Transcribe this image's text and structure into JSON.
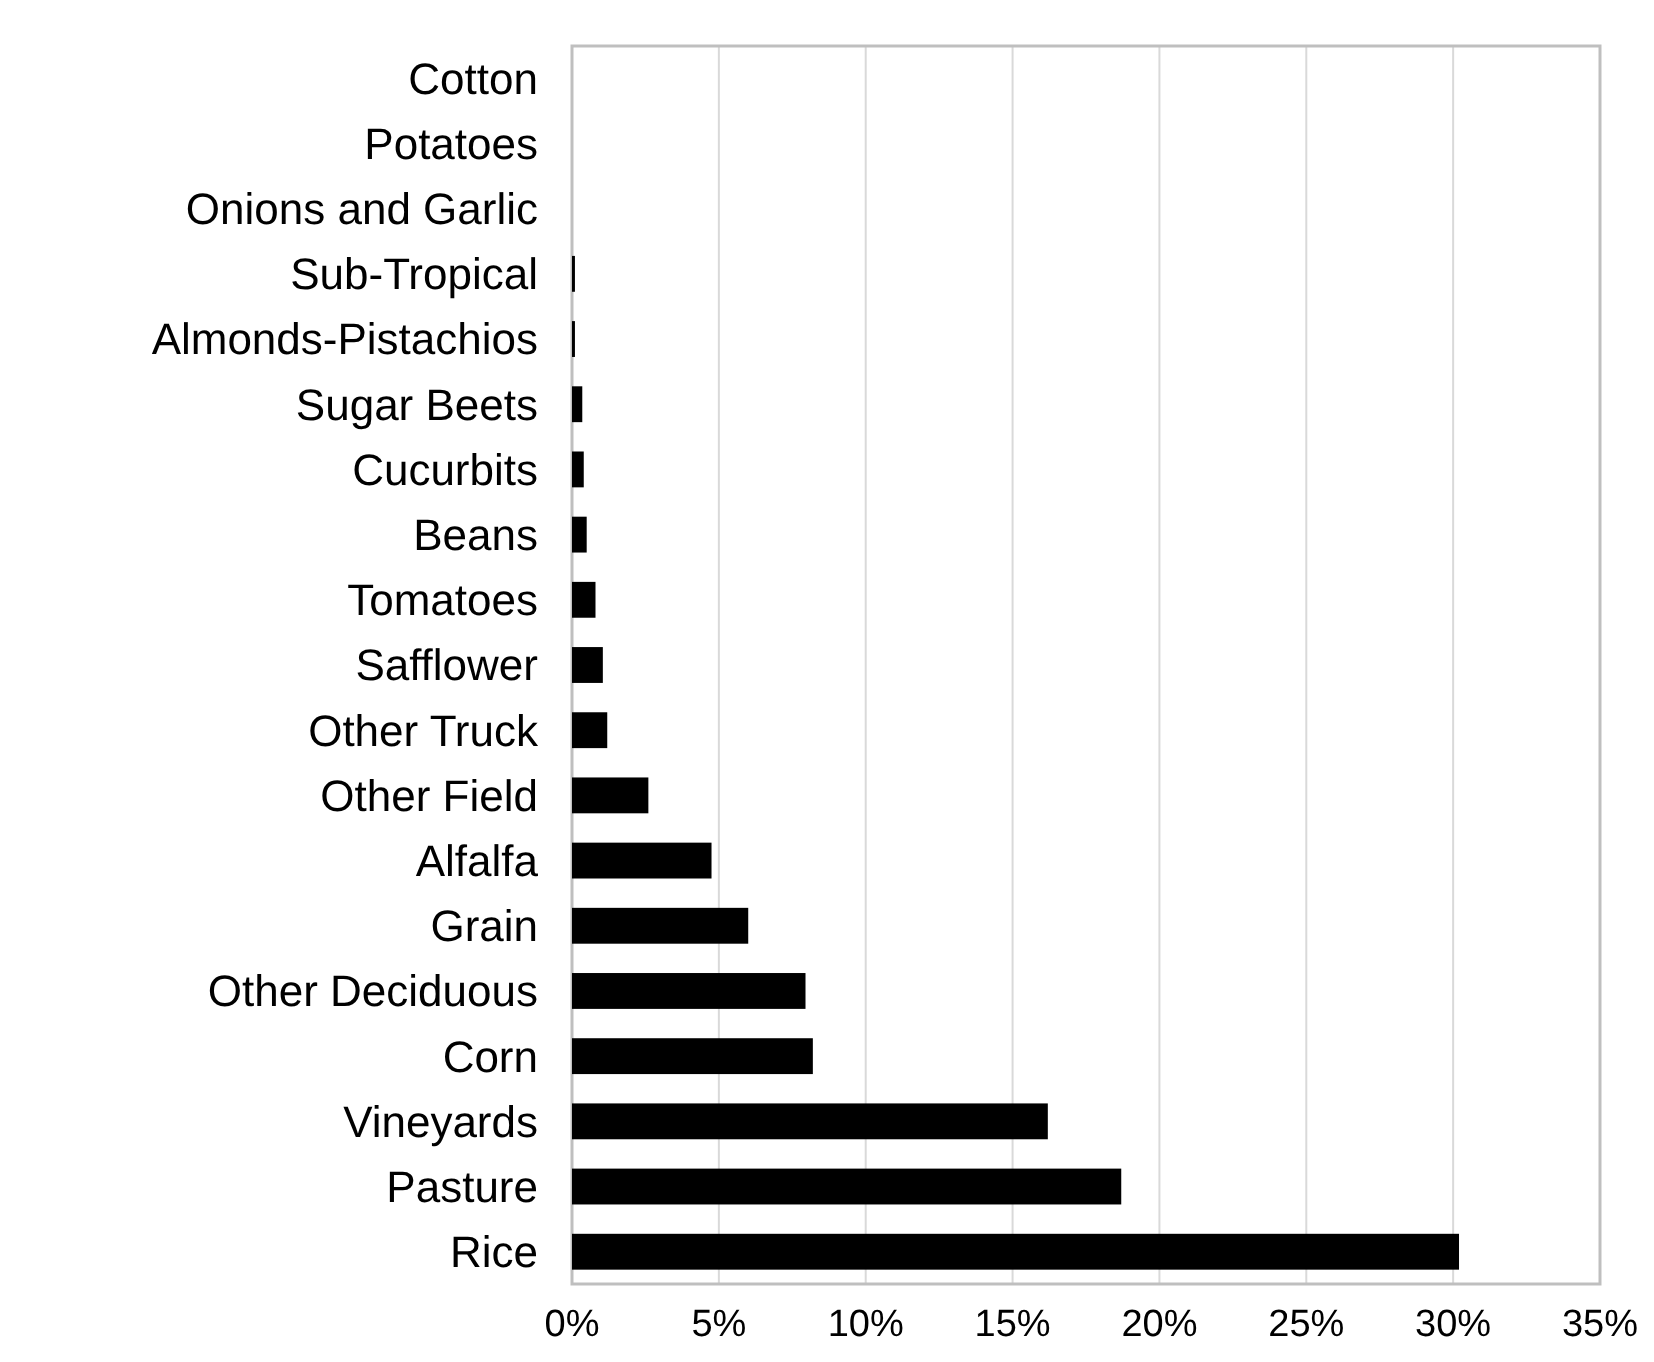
{
  "chart_data": {
    "type": "bar",
    "orientation": "horizontal",
    "categories": [
      "Cotton",
      "Potatoes",
      "Onions and Garlic",
      "Sub-Tropical",
      "Almonds-Pistachios",
      "Sugar Beets",
      "Cucurbits",
      "Beans",
      "Tomatoes",
      "Safflower",
      "Other Truck",
      "Other Field",
      "Alfalfa",
      "Grain",
      "Other Deciduous",
      "Corn",
      "Vineyards",
      "Pasture",
      "Rice"
    ],
    "values": [
      0,
      0,
      0,
      0.1,
      0.1,
      0.35,
      0.4,
      0.5,
      0.8,
      1.05,
      1.2,
      2.6,
      4.75,
      6.0,
      7.95,
      8.2,
      16.2,
      18.7,
      30.2
    ],
    "color": "#000000",
    "xlim": [
      0,
      35
    ],
    "xticks": [
      {
        "value": 0,
        "label": "0%"
      },
      {
        "value": 5,
        "label": "5%"
      },
      {
        "value": 10,
        "label": "10%"
      },
      {
        "value": 15,
        "label": "15%"
      },
      {
        "value": 20,
        "label": "20%"
      },
      {
        "value": 25,
        "label": "25%"
      },
      {
        "value": 30,
        "label": "30%"
      },
      {
        "value": 35,
        "label": "35%"
      }
    ],
    "grid": "x"
  }
}
